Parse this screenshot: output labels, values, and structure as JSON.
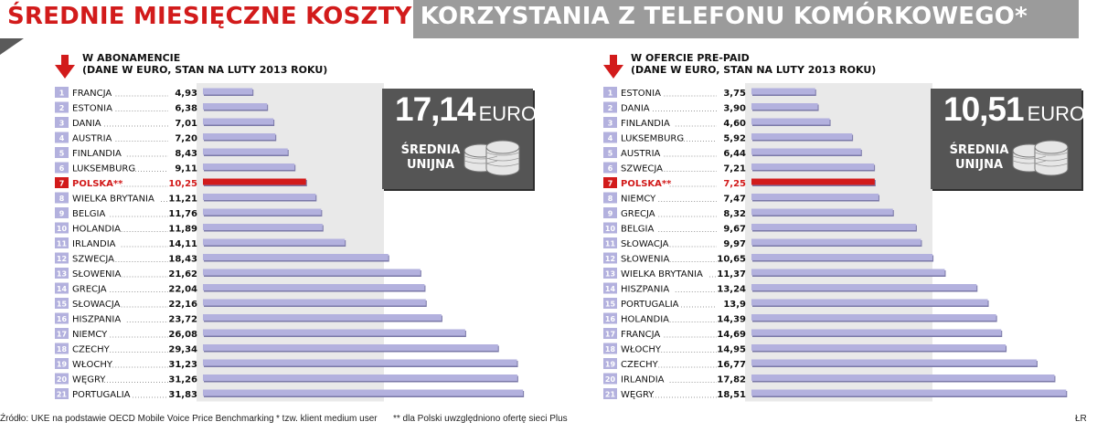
{
  "title": {
    "part1": "ŚREDNIE MIESIĘCZNE KOSZTY",
    "part2": "KORZYSTANIA Z TELEFONU KOMÓRKOWEGO*"
  },
  "colors": {
    "accent_red": "#d21b1b",
    "bar_lilac": "#b3b1de",
    "highlight_bar": "#d21b1b",
    "box_gray": "#555555",
    "band_gray": "#e9e9e9"
  },
  "average_unit": "EURO",
  "average_label": "ŚREDNIA UNIJNA",
  "chart_data": [
    {
      "type": "bar",
      "orientation": "horizontal",
      "title_line1": "W ABONAMENCIE",
      "title_line2": "(DANE W EURO, STAN NA LUTY 2013 ROKU)",
      "average_value": "17,14",
      "highlight": "POLSKA**",
      "categories": [
        "FRANCJA",
        "ESTONIA",
        "DANIA",
        "AUSTRIA",
        "FINLANDIA",
        "LUKSEMBURG",
        "POLSKA**",
        "WIELKA BRYTANIA",
        "BELGIA",
        "HOLANDIA",
        "IRLANDIA",
        "SZWECJA",
        "SŁOWENIA",
        "GRECJA",
        "SŁOWACJA",
        "HISZPANIA",
        "NIEMCY",
        "CZECHY",
        "WŁOCHY",
        "WĘGRY",
        "PORTUGALIA"
      ],
      "values": [
        4.93,
        6.38,
        7.01,
        7.2,
        8.43,
        9.11,
        10.25,
        11.21,
        11.76,
        11.89,
        14.11,
        18.43,
        21.62,
        22.04,
        22.16,
        23.72,
        26.08,
        29.34,
        31.23,
        31.26,
        31.83
      ],
      "value_labels": [
        "4,93",
        "6,38",
        "7,01",
        "7,20",
        "8,43",
        "9,11",
        "10,25",
        "11,21",
        "11,76",
        "11,89",
        "14,11",
        "18,43",
        "21,62",
        "22,04",
        "22,16",
        "23,72",
        "26,08",
        "29,34",
        "31,23",
        "31,26",
        "31,83"
      ]
    },
    {
      "type": "bar",
      "orientation": "horizontal",
      "title_line1": "W OFERCIE PRE-PAID",
      "title_line2": "(DANE W EURO, STAN NA LUTY 2013 ROKU)",
      "average_value": "10,51",
      "highlight": "POLSKA**",
      "categories": [
        "ESTONIA",
        "DANIA",
        "FINLANDIA",
        "LUKSEMBURG",
        "AUSTRIA",
        "SZWECJA",
        "POLSKA**",
        "NIEMCY",
        "GRECJA",
        "BELGIA",
        "SŁOWACJA",
        "SŁOWENIA",
        "WIELKA BRYTANIA",
        "HISZPANIA",
        "PORTUGALIA",
        "HOLANDIA",
        "FRANCJA",
        "WŁOCHY",
        "CZECHY",
        "IRLANDIA",
        "WĘGRY"
      ],
      "values": [
        3.75,
        3.9,
        4.6,
        5.92,
        6.44,
        7.21,
        7.25,
        7.47,
        8.32,
        9.67,
        9.97,
        10.65,
        11.37,
        13.24,
        13.9,
        14.39,
        14.69,
        14.95,
        16.77,
        17.82,
        18.51
      ],
      "value_labels": [
        "3,75",
        "3,90",
        "4,60",
        "5,92",
        "6,44",
        "7,21",
        "7,25",
        "7,47",
        "8,32",
        "9,67",
        "9,97",
        "10,65",
        "11,37",
        "13,24",
        "13,9",
        "14,39",
        "14,69",
        "14,95",
        "16,77",
        "17,82",
        "18,51"
      ]
    }
  ],
  "footer": {
    "source": "Źródło: UKE na podstawie OECD Mobile Voice Price Benchmarking",
    "note1": "* tzw. klient medium user",
    "note2": "** dla Polski uwzględniono ofertę sieci Plus",
    "author": "ŁR"
  }
}
